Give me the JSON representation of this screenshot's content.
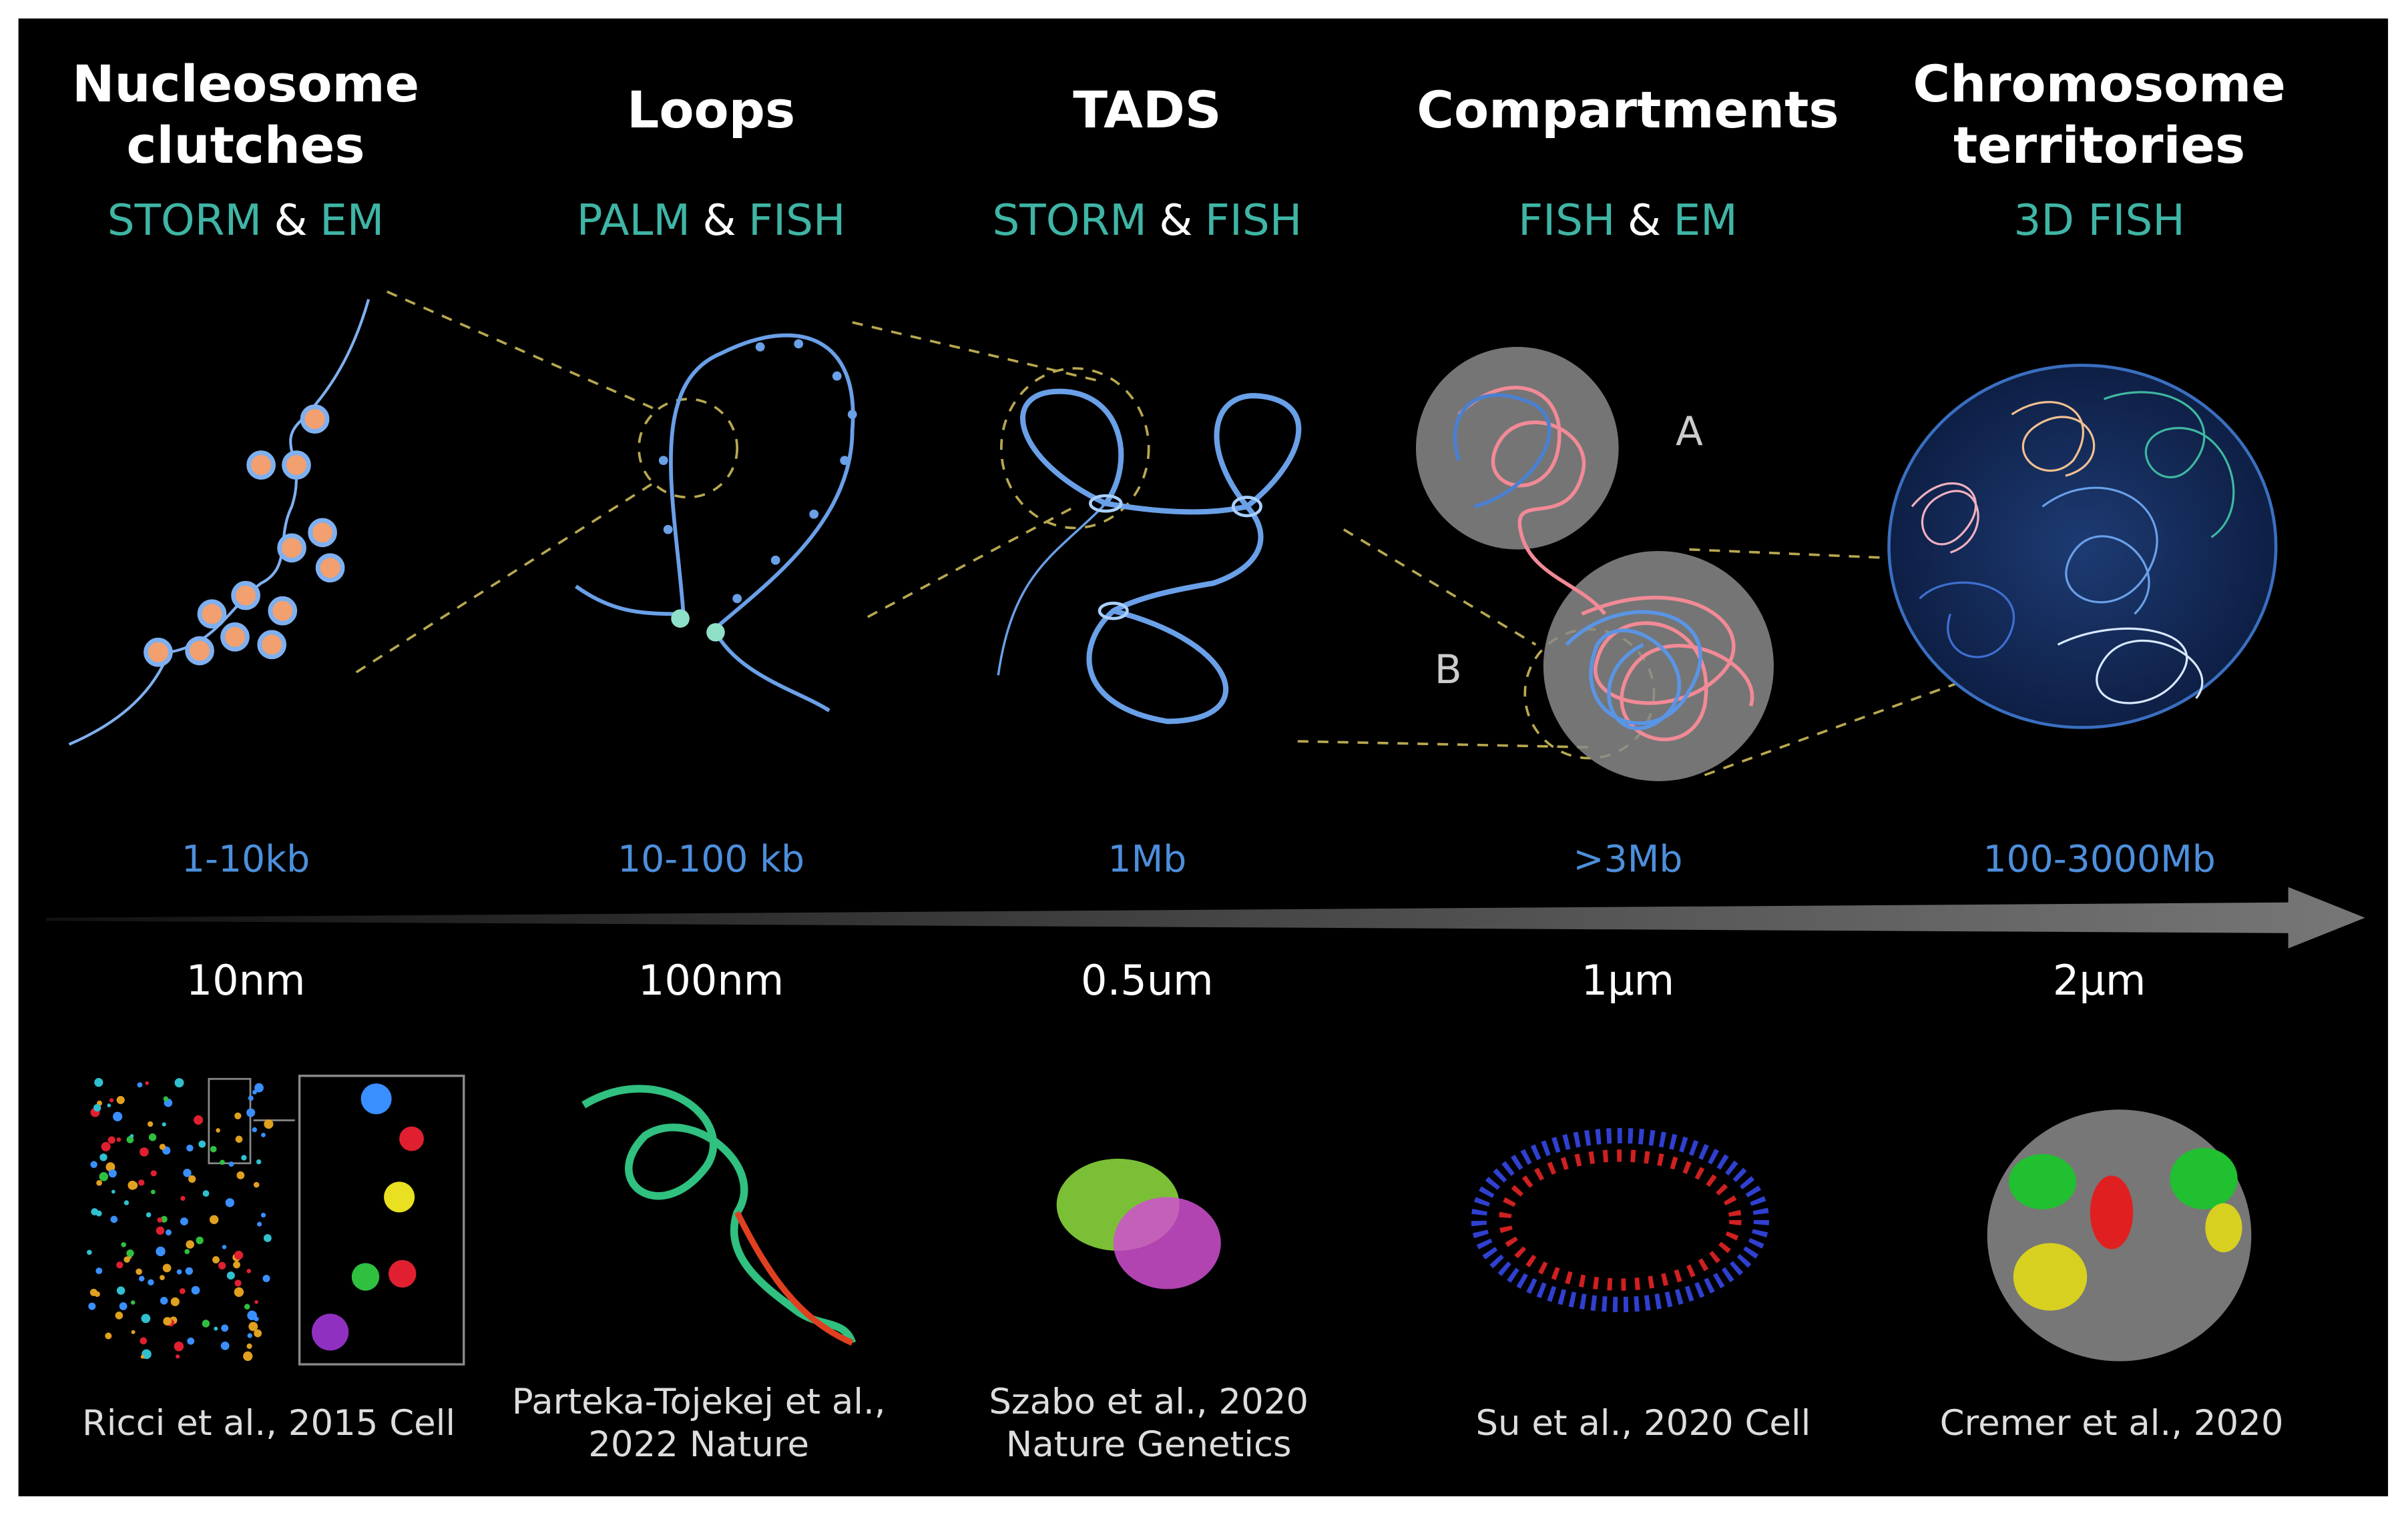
{
  "columns": [
    {
      "title": [
        "Nucleosome",
        "clutches"
      ],
      "method": [
        "STORM",
        "&",
        "EM"
      ],
      "size": "1-10kb",
      "scale": "10nm",
      "citation": [
        "Ricci et al., 2015 Cell"
      ]
    },
    {
      "title": [
        "Loops"
      ],
      "method": [
        "PALM",
        "&",
        "FISH"
      ],
      "size": "10-100 kb",
      "scale": "100nm",
      "citation": [
        "Parteka-Tojekej et al.,",
        "2022 Nature"
      ]
    },
    {
      "title": [
        "TADS"
      ],
      "method": [
        "STORM",
        "&",
        "FISH"
      ],
      "size": "1Mb",
      "scale": "0.5um",
      "citation": [
        "Szabo et al., 2020",
        "Nature Genetics"
      ]
    },
    {
      "title": [
        "Compartments"
      ],
      "method": [
        "FISH",
        "&",
        "EM"
      ],
      "size": ">3Mb",
      "scale": "1μm",
      "citation": [
        "Su et al.,  2020 Cell"
      ]
    },
    {
      "title": [
        "Chromosome",
        "territories"
      ],
      "method": [
        "3D FISH"
      ],
      "size": "100-3000Mb",
      "scale": "2μm",
      "citation": [
        "Cremer et al., 2020"
      ]
    }
  ],
  "labels": {
    "a": "A",
    "b": "B"
  }
}
